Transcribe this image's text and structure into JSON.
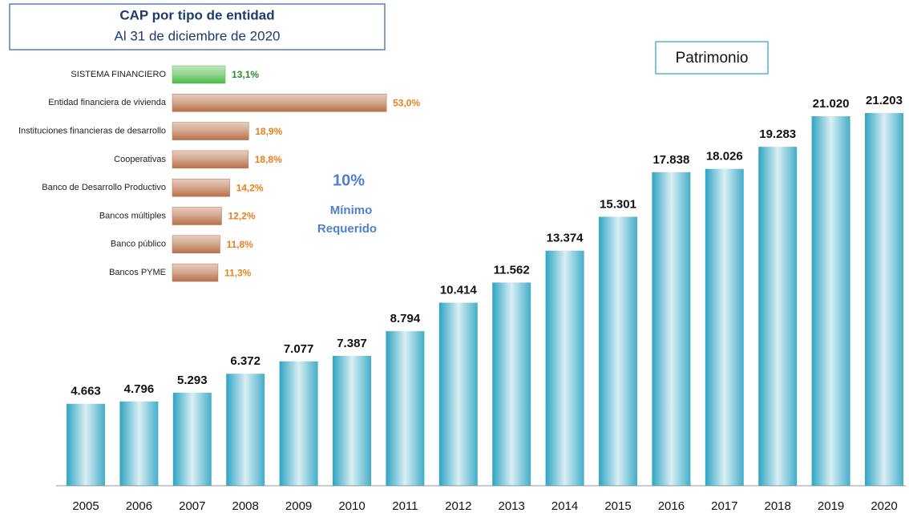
{
  "chart_data": [
    {
      "type": "hbar",
      "title": "CAP por tipo de entidad",
      "subtitle": "Al 31 de diciembre de 2020",
      "categories": [
        "SISTEMA FINANCIERO",
        "Entidad financiera de vivienda",
        "Instituciones financieras de desarrollo",
        "Cooperativas",
        "Banco de Desarrollo Productivo",
        "Bancos múltiples",
        "Banco público",
        "Bancos PYME"
      ],
      "values": [
        13.1,
        53.0,
        18.9,
        18.8,
        14.2,
        12.2,
        11.8,
        11.3
      ],
      "value_labels": [
        "13,1%",
        "53,0%",
        "18,9%",
        "18,8%",
        "14,2%",
        "12,2%",
        "11,8%",
        "11,3%"
      ],
      "colors": [
        "#4cbb4a",
        "#b8704a",
        "#b8704a",
        "#b8704a",
        "#b8704a",
        "#b8704a",
        "#b8704a",
        "#b8704a"
      ],
      "value_label_colors": [
        "#2e8b2e",
        "#e8801e",
        "#e8801e",
        "#e8801e",
        "#e8801e",
        "#e8801e",
        "#e8801e",
        "#e8801e"
      ],
      "annotations": [
        "10%",
        "Mínimo",
        "Requerido"
      ]
    },
    {
      "type": "bar",
      "title": "Patrimonio",
      "categories": [
        "2005",
        "2006",
        "2007",
        "2008",
        "2009",
        "2010",
        "2011",
        "2012",
        "2013",
        "2014",
        "2015",
        "2016",
        "2017",
        "2018",
        "2019",
        "2020"
      ],
      "values": [
        4663,
        4796,
        5293,
        6372,
        7077,
        7387,
        8794,
        10414,
        11562,
        13374,
        15301,
        17838,
        18026,
        19283,
        21020,
        21203
      ],
      "value_labels": [
        "4.663",
        "4.796",
        "5.293",
        "6.372",
        "7.077",
        "7.387",
        "8.794",
        "10.414",
        "11.562",
        "13.374",
        "15.301",
        "17.838",
        "18.026",
        "19.283",
        "21.020",
        "21.203"
      ],
      "color": "#2fa4c2"
    }
  ]
}
